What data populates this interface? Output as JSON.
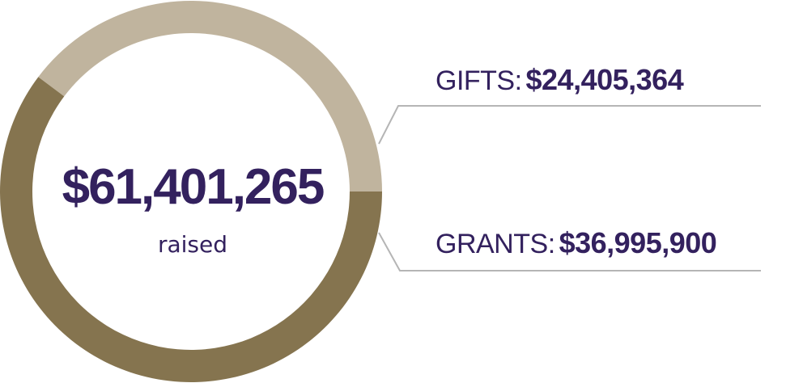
{
  "chart_data": {
    "type": "pie",
    "style": "donut",
    "categories": [
      "GIFTS",
      "GRANTS"
    ],
    "values": [
      24405364,
      36995900
    ],
    "value_labels": [
      "$24,405,364",
      "$36,995,900"
    ],
    "colors": [
      "#c0b49e",
      "#85744f"
    ],
    "center_value": "$61,401,265",
    "center_label": "raised",
    "colon": ":",
    "legend_position": "right",
    "text_color": "#33215e",
    "leader_color": "#b5b5b5"
  }
}
